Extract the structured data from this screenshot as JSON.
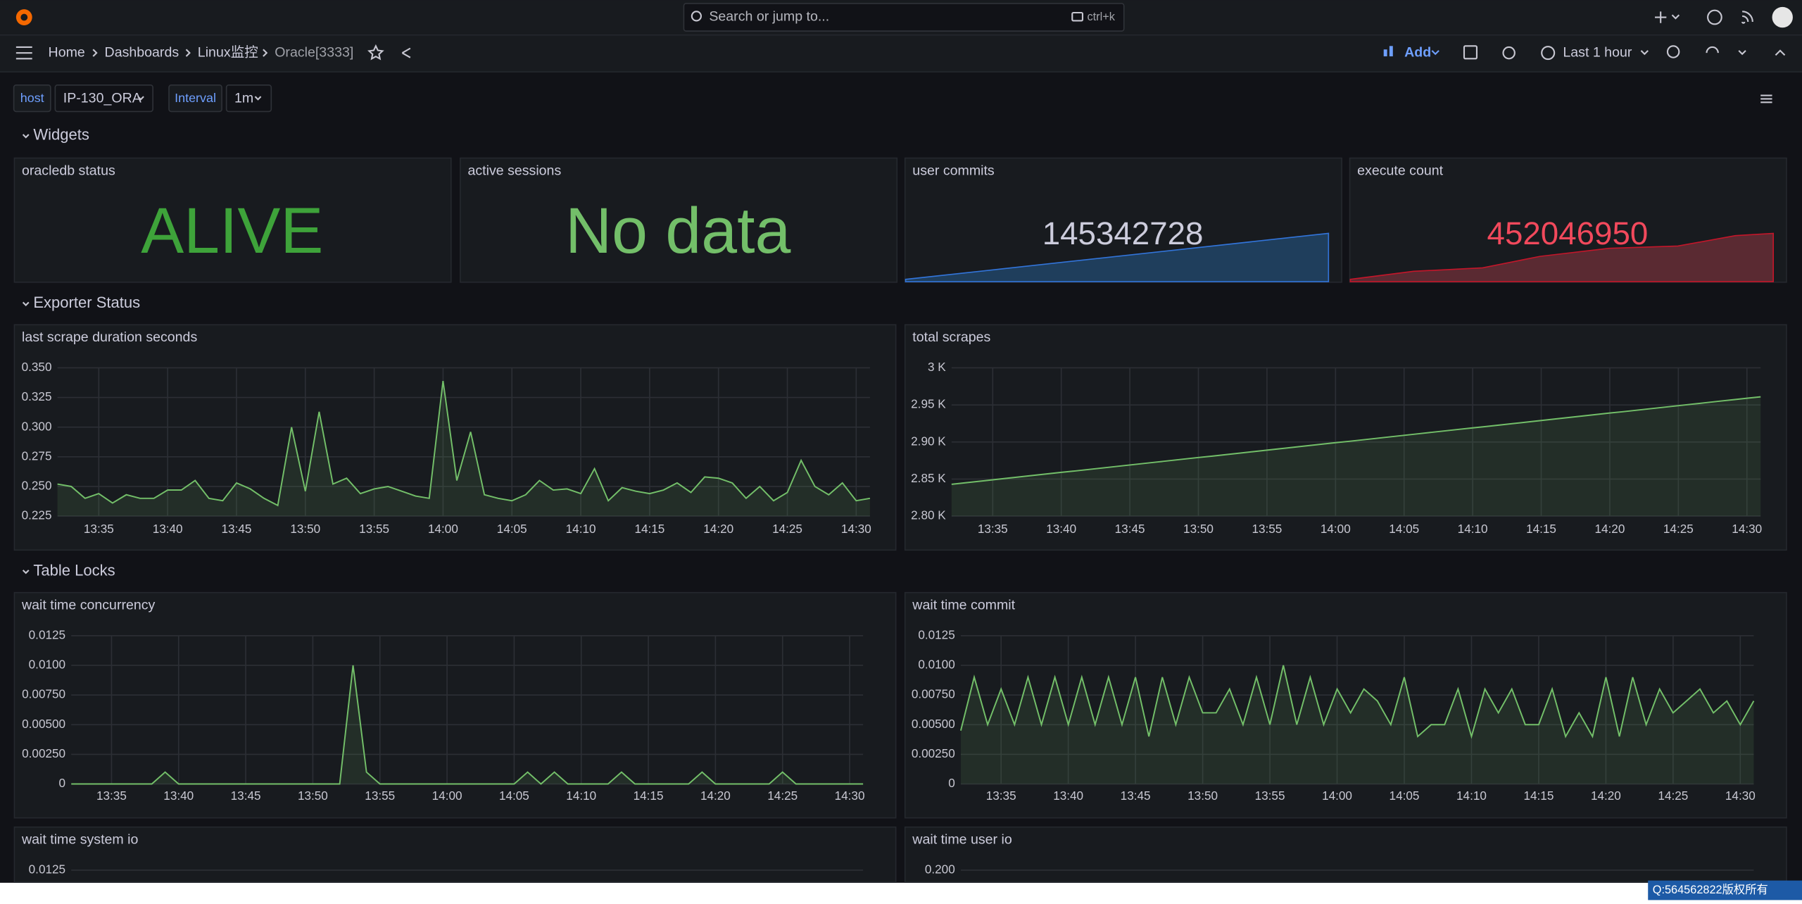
{
  "topbar": {
    "search": "Search or jump to...",
    "shortcut": "ctrl+k"
  },
  "breadcrumbs": [
    "Home",
    "Dashboards",
    "Linux监控",
    "Oracle[3333]"
  ],
  "toolbar": {
    "add": "Add",
    "time_range": "Last 1 hour"
  },
  "variables": [
    {
      "label": "host",
      "value": "IP-130_ORA"
    },
    {
      "label": "Interval",
      "value": "1m"
    }
  ],
  "rows": [
    "Widgets",
    "Exporter Status",
    "Table Locks"
  ],
  "stats": [
    {
      "title": "oracledb status",
      "value": "ALIVE",
      "color": "#3ea33a"
    },
    {
      "title": "active sessions",
      "value": "No data",
      "color": "#73bf69"
    },
    {
      "title": "user commits",
      "value": 145342728,
      "color": "#ccccdc"
    },
    {
      "title": "execute count",
      "value": 452046950,
      "color": "#f2495c"
    }
  ],
  "charts": [
    {
      "type": "line",
      "title": "last scrape duration seconds",
      "color": "#73bf69",
      "x": [
        "13:32",
        "13:33",
        "13:34",
        "13:35",
        "13:36",
        "13:37",
        "13:38",
        "13:39",
        "13:40",
        "13:41",
        "13:42",
        "13:43",
        "13:44",
        "13:45",
        "13:46",
        "13:47",
        "13:48",
        "13:49",
        "13:50",
        "13:51",
        "13:52",
        "13:53",
        "13:54",
        "13:55",
        "13:56",
        "13:57",
        "13:58",
        "13:59",
        "14:00",
        "14:01",
        "14:02",
        "14:03",
        "14:04",
        "14:05",
        "14:06",
        "14:07",
        "14:08",
        "14:09",
        "14:10",
        "14:11",
        "14:12",
        "14:13",
        "14:14",
        "14:15",
        "14:16",
        "14:17",
        "14:18",
        "14:19",
        "14:20",
        "14:21",
        "14:22",
        "14:23",
        "14:24",
        "14:25",
        "14:26",
        "14:27",
        "14:28",
        "14:29",
        "14:30",
        "14:31"
      ],
      "values": [
        0.252,
        0.25,
        0.24,
        0.244,
        0.236,
        0.243,
        0.24,
        0.24,
        0.247,
        0.247,
        0.255,
        0.24,
        0.238,
        0.253,
        0.248,
        0.24,
        0.234,
        0.3,
        0.246,
        0.313,
        0.252,
        0.257,
        0.244,
        0.248,
        0.25,
        0.246,
        0.242,
        0.24,
        0.339,
        0.255,
        0.296,
        0.243,
        0.24,
        0.238,
        0.243,
        0.255,
        0.247,
        0.248,
        0.244,
        0.265,
        0.238,
        0.249,
        0.246,
        0.244,
        0.247,
        0.253,
        0.245,
        0.258,
        0.257,
        0.253,
        0.24,
        0.25,
        0.238,
        0.245,
        0.272,
        0.25,
        0.243,
        0.253,
        0.238,
        0.24
      ],
      "ylim": [
        0.225,
        0.35
      ],
      "yticks": [
        0.225,
        {
          "value": 0.25,
          "label": "0.250"
        },
        0.275,
        {
          "value": 0.3,
          "label": "0.300"
        },
        0.325,
        {
          "value": 0.35,
          "label": "0.350"
        }
      ],
      "xticks": [
        "13:35",
        "13:40",
        "13:45",
        "13:50",
        "13:55",
        "14:00",
        "14:05",
        "14:10",
        "14:15",
        "14:20",
        "14:25",
        "14:30"
      ],
      "grid": true
    },
    {
      "type": "line",
      "title": "total scrapes",
      "color": "#73bf69",
      "x": [
        "13:32",
        "13:33",
        "13:34",
        "13:35",
        "13:36",
        "13:37",
        "13:38",
        "13:39",
        "13:40",
        "13:41",
        "13:42",
        "13:43",
        "13:44",
        "13:45",
        "13:46",
        "13:47",
        "13:48",
        "13:49",
        "13:50",
        "13:51",
        "13:52",
        "13:53",
        "13:54",
        "13:55",
        "13:56",
        "13:57",
        "13:58",
        "13:59",
        "14:00",
        "14:01",
        "14:02",
        "14:03",
        "14:04",
        "14:05",
        "14:06",
        "14:07",
        "14:08",
        "14:09",
        "14:10",
        "14:11",
        "14:12",
        "14:13",
        "14:14",
        "14:15",
        "14:16",
        "14:17",
        "14:18",
        "14:19",
        "14:20",
        "14:21",
        "14:22",
        "14:23",
        "14:24",
        "14:25",
        "14:26",
        "14:27",
        "14:28",
        "14:29",
        "14:30",
        "14:31"
      ],
      "values": [
        2843,
        2845,
        2847,
        2849,
        2851,
        2853,
        2855,
        2857,
        2859,
        2861,
        2863,
        2865,
        2867,
        2869,
        2871,
        2873,
        2875,
        2877,
        2879,
        2881,
        2883,
        2885,
        2887,
        2889,
        2891,
        2893,
        2895,
        2897,
        2899,
        2901,
        2903,
        2905,
        2907,
        2909,
        2911,
        2913,
        2915,
        2917,
        2919,
        2921,
        2923,
        2925,
        2927,
        2929,
        2931,
        2933,
        2935,
        2937,
        2939,
        2941,
        2943,
        2945,
        2947,
        2949,
        2951,
        2953,
        2955,
        2957,
        2959,
        2961
      ],
      "ylim": [
        2800,
        3000
      ],
      "yticks": [
        {
          "value": 2800,
          "label": "2.80 K"
        },
        {
          "value": 2850,
          "label": "2.85 K"
        },
        {
          "value": 2900,
          "label": "2.90 K"
        },
        {
          "value": 2950,
          "label": "2.95 K"
        },
        {
          "value": 3000,
          "label": "3 K"
        }
      ],
      "xticks": [
        "13:35",
        "13:40",
        "13:45",
        "13:50",
        "13:55",
        "14:00",
        "14:05",
        "14:10",
        "14:15",
        "14:20",
        "14:25",
        "14:30"
      ],
      "grid": true
    },
    {
      "type": "line",
      "title": "wait time concurrency",
      "color": "#73bf69",
      "x": [
        "13:32",
        "13:33",
        "13:34",
        "13:35",
        "13:36",
        "13:37",
        "13:38",
        "13:39",
        "13:40",
        "13:41",
        "13:42",
        "13:43",
        "13:44",
        "13:45",
        "13:46",
        "13:47",
        "13:48",
        "13:49",
        "13:50",
        "13:51",
        "13:52",
        "13:53",
        "13:54",
        "13:55",
        "13:56",
        "13:57",
        "13:58",
        "13:59",
        "14:00",
        "14:01",
        "14:02",
        "14:03",
        "14:04",
        "14:05",
        "14:06",
        "14:07",
        "14:08",
        "14:09",
        "14:10",
        "14:11",
        "14:12",
        "14:13",
        "14:14",
        "14:15",
        "14:16",
        "14:17",
        "14:18",
        "14:19",
        "14:20",
        "14:21",
        "14:22",
        "14:23",
        "14:24",
        "14:25",
        "14:26",
        "14:27",
        "14:28",
        "14:29",
        "14:30",
        "14:31"
      ],
      "values": [
        0,
        0,
        0,
        0,
        0,
        0,
        0,
        0.001,
        0,
        0,
        0,
        0,
        0,
        0,
        0,
        0,
        0,
        0,
        0,
        0,
        0,
        0.01,
        0.001,
        0,
        0,
        0,
        0,
        0,
        0,
        0,
        0,
        0,
        0,
        0,
        0.001,
        0,
        0.001,
        0,
        0,
        0,
        0,
        0.001,
        0,
        0,
        0,
        0,
        0,
        0.001,
        0,
        0,
        0,
        0,
        0,
        0.001,
        0,
        0,
        0,
        0,
        0,
        0
      ],
      "ylim": [
        0,
        0.0125
      ],
      "yticks": [
        0,
        {
          "value": 0.0025,
          "label": "0.00250"
        },
        {
          "value": 0.005,
          "label": "0.00500"
        },
        {
          "value": 0.0075,
          "label": "0.00750"
        },
        {
          "value": 0.01,
          "label": "0.0100"
        },
        0.0125
      ],
      "xticks": [
        "13:35",
        "13:40",
        "13:45",
        "13:50",
        "13:55",
        "14:00",
        "14:05",
        "14:10",
        "14:15",
        "14:20",
        "14:25",
        "14:30"
      ],
      "grid": true
    },
    {
      "type": "line",
      "title": "wait time commit",
      "color": "#73bf69",
      "x": [
        "13:32",
        "13:33",
        "13:34",
        "13:35",
        "13:36",
        "13:37",
        "13:38",
        "13:39",
        "13:40",
        "13:41",
        "13:42",
        "13:43",
        "13:44",
        "13:45",
        "13:46",
        "13:47",
        "13:48",
        "13:49",
        "13:50",
        "13:51",
        "13:52",
        "13:53",
        "13:54",
        "13:55",
        "13:56",
        "13:57",
        "13:58",
        "13:59",
        "14:00",
        "14:01",
        "14:02",
        "14:03",
        "14:04",
        "14:05",
        "14:06",
        "14:07",
        "14:08",
        "14:09",
        "14:10",
        "14:11",
        "14:12",
        "14:13",
        "14:14",
        "14:15",
        "14:16",
        "14:17",
        "14:18",
        "14:19",
        "14:20",
        "14:21",
        "14:22",
        "14:23",
        "14:24",
        "14:25",
        "14:26",
        "14:27",
        "14:28",
        "14:29",
        "14:30",
        "14:31"
      ],
      "values": [
        0.0045,
        0.009,
        0.005,
        0.008,
        0.005,
        0.009,
        0.005,
        0.009,
        0.005,
        0.009,
        0.005,
        0.009,
        0.005,
        0.009,
        0.004,
        0.009,
        0.005,
        0.009,
        0.006,
        0.006,
        0.008,
        0.005,
        0.009,
        0.005,
        0.01,
        0.005,
        0.009,
        0.005,
        0.008,
        0.006,
        0.008,
        0.007,
        0.005,
        0.009,
        0.004,
        0.005,
        0.005,
        0.008,
        0.004,
        0.008,
        0.006,
        0.008,
        0.005,
        0.005,
        0.008,
        0.004,
        0.006,
        0.004,
        0.009,
        0.004,
        0.009,
        0.005,
        0.008,
        0.006,
        0.007,
        0.008,
        0.006,
        0.007,
        0.005,
        0.007
      ],
      "ylim": [
        0,
        0.0125
      ],
      "yticks": [
        0,
        {
          "value": 0.0025,
          "label": "0.00250"
        },
        {
          "value": 0.005,
          "label": "0.00500"
        },
        {
          "value": 0.0075,
          "label": "0.00750"
        },
        {
          "value": 0.01,
          "label": "0.0100"
        },
        0.0125
      ],
      "xticks": [
        "13:35",
        "13:40",
        "13:45",
        "13:50",
        "13:55",
        "14:00",
        "14:05",
        "14:10",
        "14:15",
        "14:20",
        "14:25",
        "14:30"
      ],
      "grid": true
    }
  ],
  "partial_panels": [
    {
      "title": "wait time system io",
      "yticks": [
        0.0125
      ]
    },
    {
      "title": "wait time user io",
      "yticks": [
        {
          "value": 0.2,
          "label": "0.200"
        }
      ]
    }
  ],
  "watermark": "Q:564562822版权所有"
}
